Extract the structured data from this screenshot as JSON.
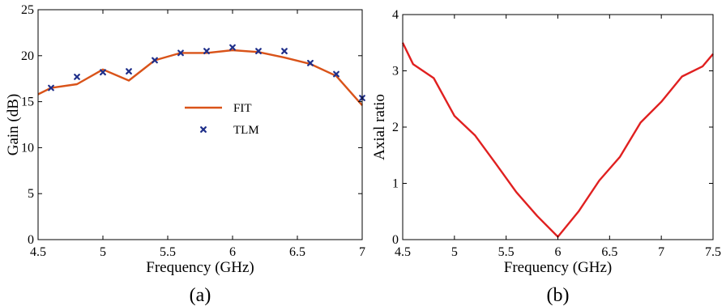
{
  "chart_data": [
    {
      "type": "line",
      "panel_label": "(a)",
      "xlabel": "Frequency (GHz)",
      "ylabel": "Gain (dB)",
      "xlim": [
        4.5,
        7
      ],
      "ylim": [
        0,
        25
      ],
      "x_ticks": [
        4.5,
        5,
        5.5,
        6,
        6.5,
        7
      ],
      "x_tick_labels": [
        "4.5",
        "5",
        "5.5",
        "6",
        "6.5",
        "7"
      ],
      "y_ticks": [
        0,
        5,
        10,
        15,
        20,
        25
      ],
      "y_tick_labels": [
        "0",
        "5",
        "10",
        "15",
        "20",
        "25"
      ],
      "grid": false,
      "legend": {
        "placement": "center",
        "entries": [
          "FIT",
          "TLM"
        ]
      },
      "series": [
        {
          "name": "FIT",
          "kind": "line",
          "color": "#d95319",
          "x": [
            4.5,
            4.6,
            4.8,
            5.0,
            5.2,
            5.4,
            5.6,
            5.8,
            6.0,
            6.2,
            6.4,
            6.6,
            6.8,
            7.0
          ],
          "y": [
            15.8,
            16.5,
            16.9,
            18.5,
            17.3,
            19.5,
            20.3,
            20.3,
            20.6,
            20.4,
            19.8,
            19.1,
            17.8,
            14.6
          ]
        },
        {
          "name": "TLM",
          "kind": "scatter",
          "color": "#1f2f8a",
          "x": [
            4.6,
            4.8,
            5.0,
            5.2,
            5.4,
            5.6,
            5.8,
            6.0,
            6.2,
            6.4,
            6.6,
            6.8,
            7.0
          ],
          "y": [
            16.5,
            17.7,
            18.2,
            18.3,
            19.5,
            20.3,
            20.5,
            20.9,
            20.5,
            20.5,
            19.2,
            18.0,
            15.4
          ]
        }
      ]
    },
    {
      "type": "line",
      "panel_label": "(b)",
      "xlabel": "Frequency (GHz)",
      "ylabel": "Axial ratio",
      "xlim": [
        4.5,
        7.5
      ],
      "ylim": [
        0,
        4
      ],
      "x_ticks": [
        4.5,
        5,
        5.5,
        6,
        6.5,
        7,
        7.5
      ],
      "x_tick_labels": [
        "4.5",
        "5",
        "5.5",
        "6",
        "6.5",
        "7",
        "7.5"
      ],
      "y_ticks": [
        0,
        1,
        2,
        3,
        4
      ],
      "y_tick_labels": [
        "0",
        "1",
        "2",
        "3",
        "4"
      ],
      "grid": false,
      "series": [
        {
          "kind": "line",
          "color": "#e02020",
          "x": [
            4.5,
            4.6,
            4.8,
            5.0,
            5.2,
            5.4,
            5.6,
            5.8,
            6.0,
            6.2,
            6.4,
            6.6,
            6.8,
            7.0,
            7.2,
            7.4,
            7.5
          ],
          "y": [
            3.5,
            3.12,
            2.87,
            2.2,
            1.85,
            1.35,
            0.84,
            0.42,
            0.05,
            0.5,
            1.05,
            1.47,
            2.08,
            2.45,
            2.9,
            3.08,
            3.3
          ]
        }
      ]
    }
  ]
}
